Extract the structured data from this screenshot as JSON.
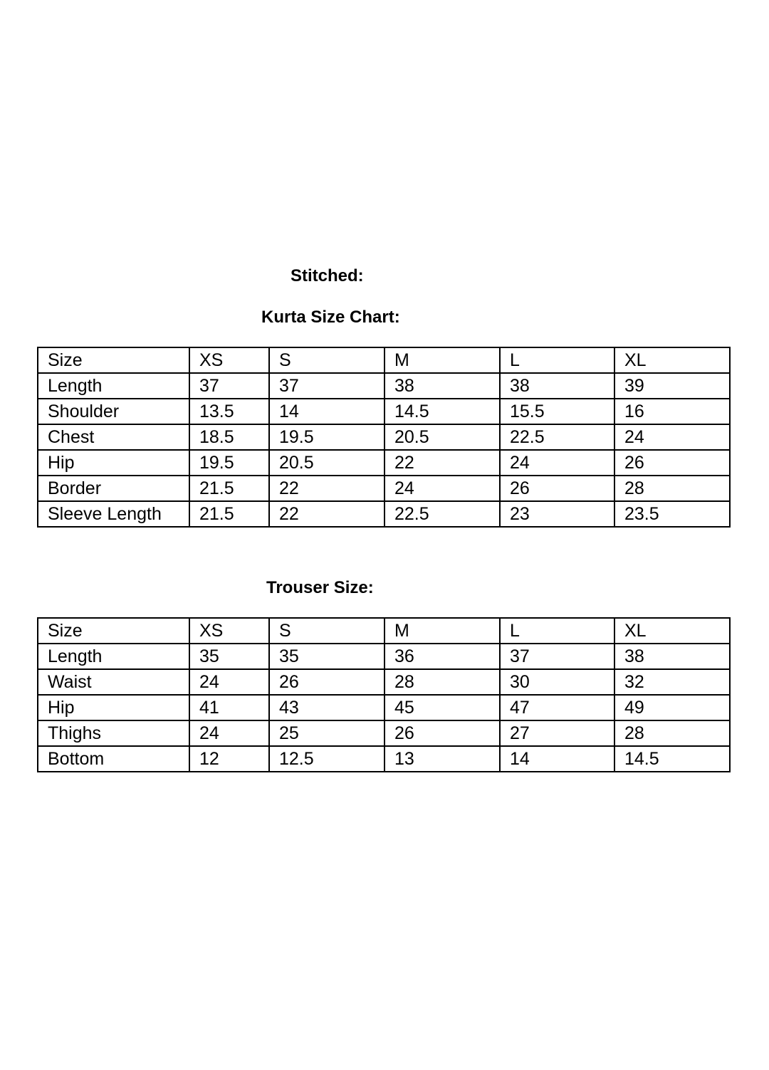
{
  "heading": "Stitched:",
  "kurta": {
    "title": "Kurta Size Chart:",
    "rows": [
      [
        "Size",
        "XS",
        "S",
        "M",
        "L",
        "XL"
      ],
      [
        "Length",
        "37",
        "37",
        "38",
        "38",
        "39"
      ],
      [
        "Shoulder",
        "13.5",
        "14",
        "14.5",
        "15.5",
        "16"
      ],
      [
        "Chest",
        "18.5",
        "19.5",
        "20.5",
        "22.5",
        "24"
      ],
      [
        "Hip",
        "19.5",
        "20.5",
        "22",
        "24",
        "26"
      ],
      [
        "Border",
        "21.5",
        "22",
        "24",
        "26",
        "28"
      ],
      [
        "Sleeve Length",
        "21.5",
        "22",
        "22.5",
        "23",
        "23.5"
      ]
    ]
  },
  "trouser": {
    "title": "Trouser Size:",
    "rows": [
      [
        "Size",
        "XS",
        "S",
        "M",
        "L",
        "XL"
      ],
      [
        "Length",
        "35",
        "35",
        "36",
        "37",
        "38"
      ],
      [
        "Waist",
        "24",
        "26",
        "28",
        "30",
        "32"
      ],
      [
        "Hip",
        "41",
        "43",
        "45",
        "47",
        "49"
      ],
      [
        "Thighs",
        "24",
        "25",
        "26",
        "27",
        "28"
      ],
      [
        "Bottom",
        "12",
        "12.5",
        "13",
        "14",
        "14.5"
      ]
    ]
  }
}
